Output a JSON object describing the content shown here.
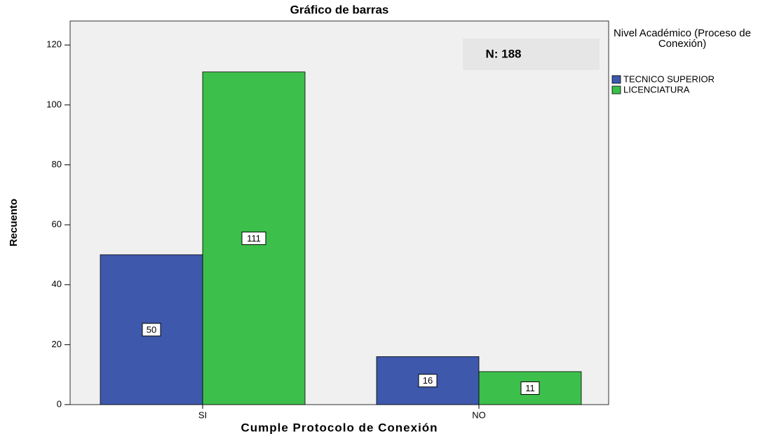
{
  "chart_data": {
    "type": "bar",
    "title": "Gráfico de barras",
    "x_label": "Cumple Protocolo de Conexión",
    "y_label": "Recuento",
    "annotation": "N: 188",
    "legend_title": "Nivel Académico (Proceso de Conexión)",
    "legend_position": "right",
    "categories": [
      "SI",
      "NO"
    ],
    "series": [
      {
        "name": "TECNICO SUPERIOR",
        "color": "#3e58ac",
        "values": [
          50,
          16
        ]
      },
      {
        "name": "LICENCIATURA",
        "color": "#3cbf4b",
        "values": [
          111,
          11
        ]
      }
    ],
    "ylim": [
      0,
      128
    ],
    "yticks": [
      0,
      20,
      40,
      60,
      80,
      100,
      120
    ],
    "grid": false
  }
}
